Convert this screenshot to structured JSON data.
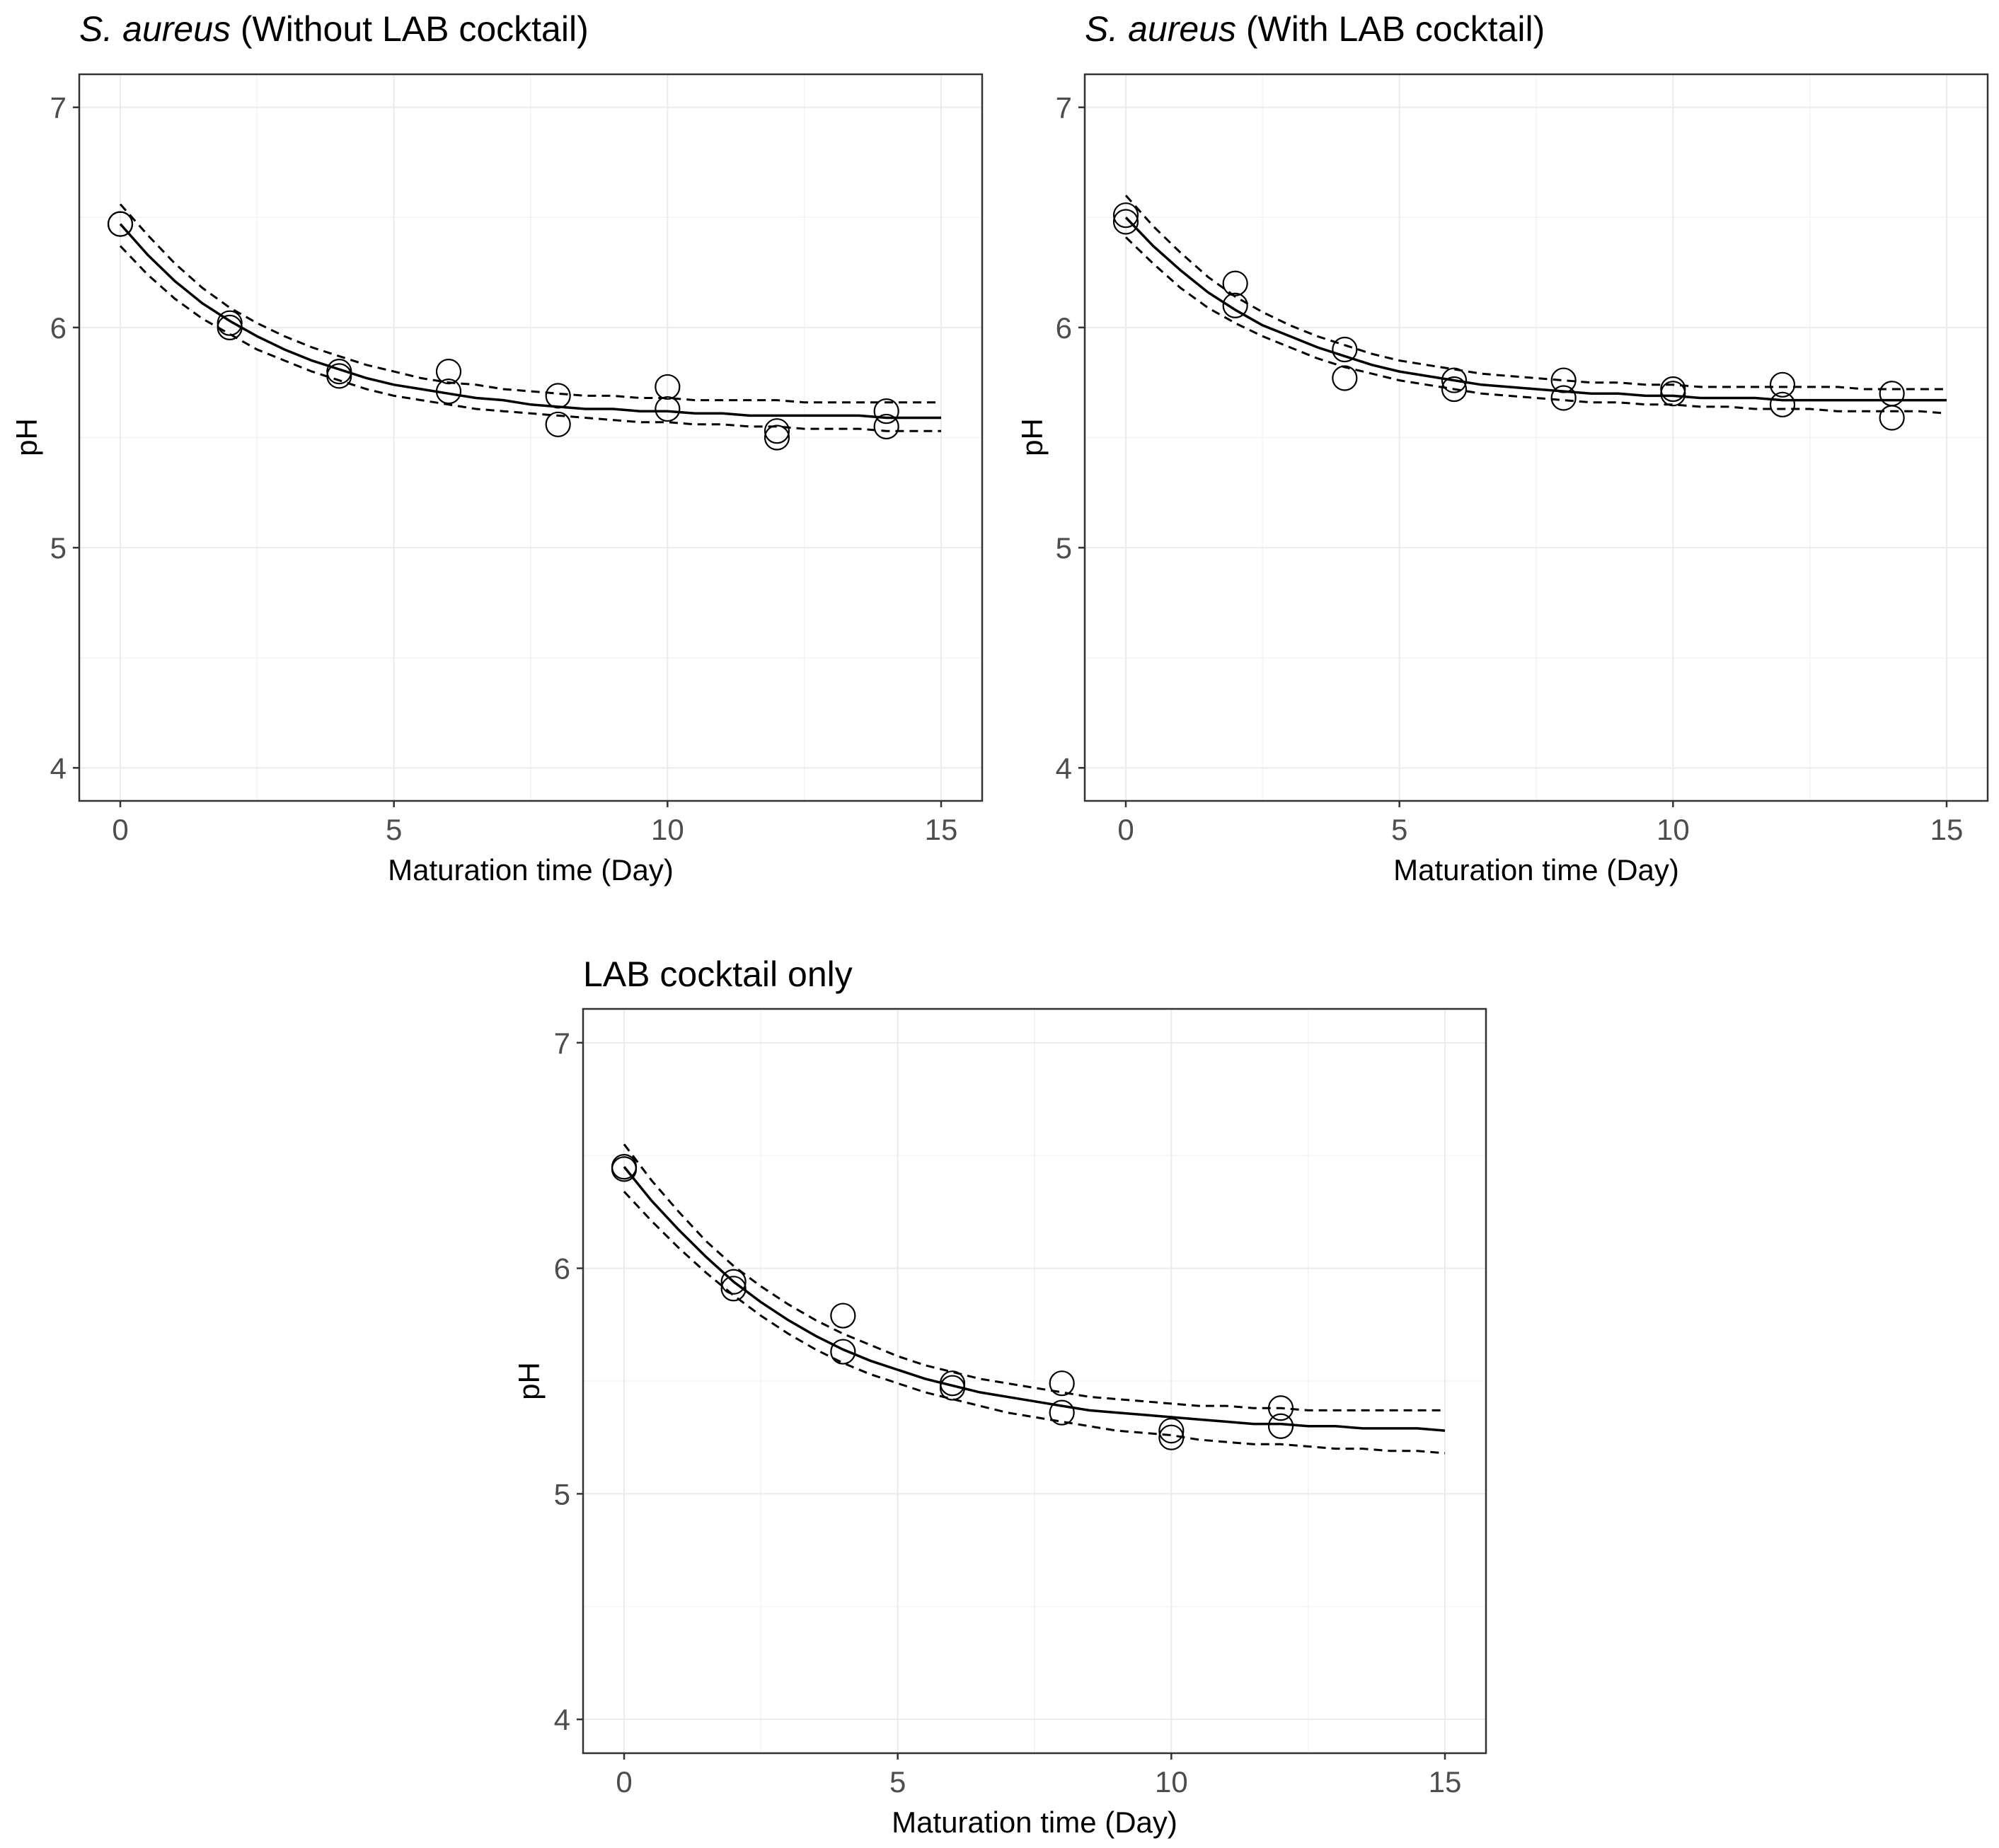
{
  "figure": {
    "background": "#ffffff"
  },
  "chart_data": [
    {
      "type": "scatter",
      "title_italic": "S. aureus",
      "title_rest": " (Without LAB cocktail)",
      "xlabel": "Maturation time (Day)",
      "ylabel": "pH",
      "xlim": [
        -0.75,
        15.75
      ],
      "ylim": [
        3.85,
        7.15
      ],
      "xticks": [
        0,
        5,
        10,
        15
      ],
      "yticks": [
        4,
        5,
        6,
        7
      ],
      "grid": true,
      "points": {
        "x": [
          0,
          0,
          2,
          2,
          4,
          4,
          6,
          6,
          8,
          8,
          10,
          10,
          12,
          12,
          14,
          14
        ],
        "y": [
          6.47,
          6.47,
          6.02,
          6.0,
          5.8,
          5.78,
          5.8,
          5.71,
          5.69,
          5.56,
          5.73,
          5.63,
          5.53,
          5.5,
          5.62,
          5.55
        ]
      },
      "fit": {
        "x": [
          0,
          0.5,
          1,
          1.5,
          2,
          2.5,
          3,
          3.5,
          4,
          4.5,
          5,
          5.5,
          6,
          6.5,
          7,
          7.5,
          8,
          8.5,
          9,
          9.5,
          10,
          10.5,
          11,
          11.5,
          12,
          12.5,
          13,
          13.5,
          14,
          14.5,
          15
        ],
        "y": [
          6.47,
          6.33,
          6.21,
          6.11,
          6.03,
          5.96,
          5.9,
          5.85,
          5.81,
          5.77,
          5.74,
          5.72,
          5.7,
          5.68,
          5.67,
          5.65,
          5.64,
          5.63,
          5.63,
          5.62,
          5.62,
          5.61,
          5.61,
          5.6,
          5.6,
          5.6,
          5.6,
          5.6,
          5.59,
          5.59,
          5.59
        ]
      },
      "ci_upper": {
        "x": [
          0,
          0.5,
          1,
          1.5,
          2,
          2.5,
          3,
          3.5,
          4,
          4.5,
          5,
          5.5,
          6,
          6.5,
          7,
          7.5,
          8,
          8.5,
          9,
          9.5,
          10,
          10.5,
          11,
          11.5,
          12,
          12.5,
          13,
          13.5,
          14,
          14.5,
          15
        ],
        "y": [
          6.56,
          6.42,
          6.29,
          6.18,
          6.09,
          6.02,
          5.96,
          5.91,
          5.87,
          5.83,
          5.8,
          5.77,
          5.75,
          5.74,
          5.72,
          5.71,
          5.7,
          5.69,
          5.69,
          5.68,
          5.68,
          5.67,
          5.67,
          5.67,
          5.67,
          5.66,
          5.66,
          5.66,
          5.66,
          5.66,
          5.66
        ]
      },
      "ci_lower": {
        "x": [
          0,
          0.5,
          1,
          1.5,
          2,
          2.5,
          3,
          3.5,
          4,
          4.5,
          5,
          5.5,
          6,
          6.5,
          7,
          7.5,
          8,
          8.5,
          9,
          9.5,
          10,
          10.5,
          11,
          11.5,
          12,
          12.5,
          13,
          13.5,
          14,
          14.5,
          15
        ],
        "y": [
          6.37,
          6.24,
          6.13,
          6.04,
          5.97,
          5.9,
          5.85,
          5.8,
          5.76,
          5.72,
          5.69,
          5.67,
          5.65,
          5.63,
          5.62,
          5.61,
          5.6,
          5.59,
          5.58,
          5.57,
          5.57,
          5.56,
          5.56,
          5.55,
          5.55,
          5.54,
          5.54,
          5.54,
          5.53,
          5.53,
          5.53
        ]
      }
    },
    {
      "type": "scatter",
      "title_italic": "S. aureus",
      "title_rest": " (With LAB cocktail)",
      "xlabel": "Maturation time (Day)",
      "ylabel": "pH",
      "xlim": [
        -0.75,
        15.75
      ],
      "ylim": [
        3.85,
        7.15
      ],
      "xticks": [
        0,
        5,
        10,
        15
      ],
      "yticks": [
        4,
        5,
        6,
        7
      ],
      "grid": true,
      "points": {
        "x": [
          0,
          0,
          2,
          2,
          4,
          4,
          6,
          6,
          8,
          8,
          10,
          10,
          12,
          12,
          14,
          14
        ],
        "y": [
          6.51,
          6.48,
          6.2,
          6.1,
          5.9,
          5.77,
          5.76,
          5.72,
          5.76,
          5.68,
          5.72,
          5.7,
          5.74,
          5.65,
          5.7,
          5.59
        ]
      },
      "fit": {
        "x": [
          0,
          0.5,
          1,
          1.5,
          2,
          2.5,
          3,
          3.5,
          4,
          4.5,
          5,
          5.5,
          6,
          6.5,
          7,
          7.5,
          8,
          8.5,
          9,
          9.5,
          10,
          10.5,
          11,
          11.5,
          12,
          12.5,
          13,
          13.5,
          14,
          14.5,
          15
        ],
        "y": [
          6.5,
          6.37,
          6.26,
          6.16,
          6.08,
          6.01,
          5.96,
          5.91,
          5.87,
          5.83,
          5.8,
          5.78,
          5.76,
          5.74,
          5.73,
          5.72,
          5.71,
          5.7,
          5.7,
          5.69,
          5.69,
          5.68,
          5.68,
          5.68,
          5.67,
          5.67,
          5.67,
          5.67,
          5.67,
          5.67,
          5.67
        ]
      },
      "ci_upper": {
        "x": [
          0,
          0.5,
          1,
          1.5,
          2,
          2.5,
          3,
          3.5,
          4,
          4.5,
          5,
          5.5,
          6,
          6.5,
          7,
          7.5,
          8,
          8.5,
          9,
          9.5,
          10,
          10.5,
          11,
          11.5,
          12,
          12.5,
          13,
          13.5,
          14,
          14.5,
          15
        ],
        "y": [
          6.6,
          6.46,
          6.34,
          6.23,
          6.14,
          6.07,
          6.01,
          5.96,
          5.92,
          5.88,
          5.85,
          5.83,
          5.81,
          5.79,
          5.78,
          5.77,
          5.76,
          5.75,
          5.75,
          5.74,
          5.74,
          5.73,
          5.73,
          5.73,
          5.73,
          5.73,
          5.73,
          5.72,
          5.72,
          5.72,
          5.72
        ]
      },
      "ci_lower": {
        "x": [
          0,
          0.5,
          1,
          1.5,
          2,
          2.5,
          3,
          3.5,
          4,
          4.5,
          5,
          5.5,
          6,
          6.5,
          7,
          7.5,
          8,
          8.5,
          9,
          9.5,
          10,
          10.5,
          11,
          11.5,
          12,
          12.5,
          13,
          13.5,
          14,
          14.5,
          15
        ],
        "y": [
          6.41,
          6.29,
          6.18,
          6.09,
          6.02,
          5.96,
          5.91,
          5.86,
          5.82,
          5.79,
          5.76,
          5.74,
          5.72,
          5.7,
          5.69,
          5.68,
          5.67,
          5.66,
          5.66,
          5.65,
          5.65,
          5.64,
          5.64,
          5.63,
          5.63,
          5.63,
          5.62,
          5.62,
          5.62,
          5.62,
          5.61
        ]
      }
    },
    {
      "type": "scatter",
      "title_italic": "",
      "title_rest": "LAB cocktail only",
      "xlabel": "Maturation time (Day)",
      "ylabel": "pH",
      "xlim": [
        -0.75,
        15.75
      ],
      "ylim": [
        3.85,
        7.15
      ],
      "xticks": [
        0,
        5,
        10,
        15
      ],
      "yticks": [
        4,
        5,
        6,
        7
      ],
      "grid": true,
      "points": {
        "x": [
          0,
          0,
          2,
          2,
          4,
          4,
          6,
          6,
          8,
          8,
          10,
          10,
          12,
          12
        ],
        "y": [
          6.45,
          6.44,
          5.94,
          5.91,
          5.79,
          5.63,
          5.49,
          5.47,
          5.49,
          5.36,
          5.28,
          5.25,
          5.38,
          5.3
        ]
      },
      "fit": {
        "x": [
          0,
          0.5,
          1,
          1.5,
          2,
          2.5,
          3,
          3.5,
          4,
          4.5,
          5,
          5.5,
          6,
          6.5,
          7,
          7.5,
          8,
          8.5,
          9,
          9.5,
          10,
          10.5,
          11,
          11.5,
          12,
          12.5,
          13,
          13.5,
          14,
          14.5,
          15
        ],
        "y": [
          6.45,
          6.3,
          6.17,
          6.05,
          5.94,
          5.85,
          5.77,
          5.7,
          5.64,
          5.59,
          5.55,
          5.51,
          5.48,
          5.45,
          5.43,
          5.41,
          5.39,
          5.37,
          5.36,
          5.35,
          5.34,
          5.33,
          5.32,
          5.31,
          5.31,
          5.3,
          5.3,
          5.29,
          5.29,
          5.29,
          5.28
        ]
      },
      "ci_upper": {
        "x": [
          0,
          0.5,
          1,
          1.5,
          2,
          2.5,
          3,
          3.5,
          4,
          4.5,
          5,
          5.5,
          6,
          6.5,
          7,
          7.5,
          8,
          8.5,
          9,
          9.5,
          10,
          10.5,
          11,
          11.5,
          12,
          12.5,
          13,
          13.5,
          14,
          14.5,
          15
        ],
        "y": [
          6.55,
          6.39,
          6.25,
          6.12,
          6.01,
          5.92,
          5.84,
          5.77,
          5.71,
          5.66,
          5.61,
          5.57,
          5.54,
          5.51,
          5.49,
          5.47,
          5.45,
          5.43,
          5.42,
          5.41,
          5.4,
          5.39,
          5.39,
          5.38,
          5.38,
          5.37,
          5.37,
          5.37,
          5.37,
          5.37,
          5.37
        ]
      },
      "ci_lower": {
        "x": [
          0,
          0.5,
          1,
          1.5,
          2,
          2.5,
          3,
          3.5,
          4,
          4.5,
          5,
          5.5,
          6,
          6.5,
          7,
          7.5,
          8,
          8.5,
          9,
          9.5,
          10,
          10.5,
          11,
          11.5,
          12,
          12.5,
          13,
          13.5,
          14,
          14.5,
          15
        ],
        "y": [
          6.34,
          6.21,
          6.09,
          5.98,
          5.88,
          5.79,
          5.71,
          5.64,
          5.58,
          5.53,
          5.49,
          5.45,
          5.42,
          5.39,
          5.36,
          5.34,
          5.32,
          5.3,
          5.28,
          5.27,
          5.26,
          5.24,
          5.23,
          5.22,
          5.22,
          5.21,
          5.2,
          5.2,
          5.19,
          5.19,
          5.18
        ]
      }
    }
  ]
}
